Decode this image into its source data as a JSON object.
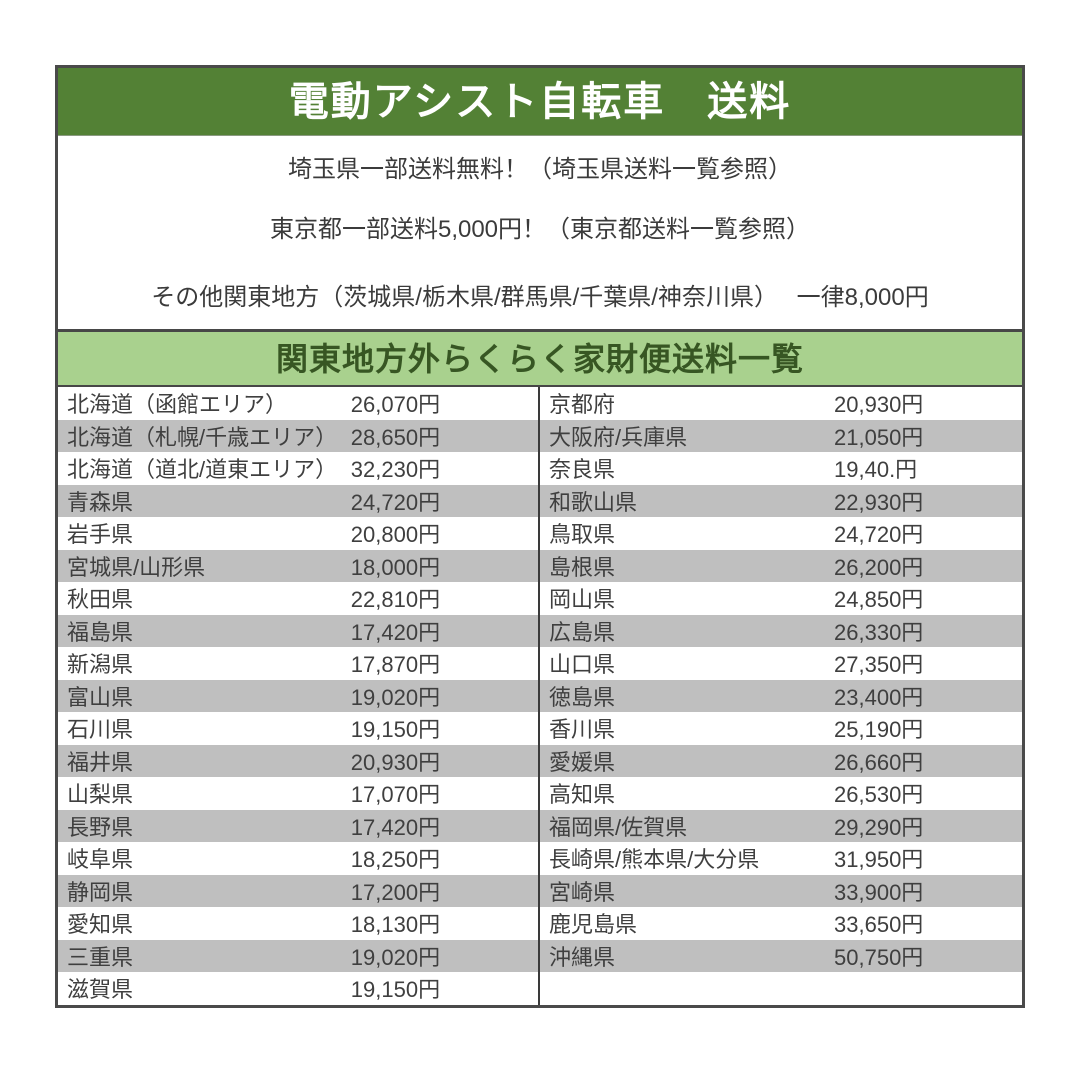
{
  "colors": {
    "header_bg": "#538135",
    "header_text": "#ffffff",
    "section_bg": "#a9d18e",
    "section_text": "#375623",
    "stripe_row": "#bfbfbf",
    "table_text": "#3f3f3f",
    "border": "#4a4a4a"
  },
  "header": {
    "title": "電動アシスト自転車　送料"
  },
  "notes": [
    "埼玉県一部送料無料！（埼玉県送料一覧参照）",
    "東京都一部送料5,000円！（東京都送料一覧参照）",
    "その他関東地方（茨城県/栃木県/群馬県/千葉県/神奈川県）　 一律8,000円"
  ],
  "section": {
    "title": "関東地方外らくらく家財便送料一覧"
  },
  "table": {
    "left_rows": [
      {
        "region": "北海道（函館エリア）",
        "price": "26,070円"
      },
      {
        "region": "北海道（札幌/千歳エリア）",
        "price": "28,650円"
      },
      {
        "region": "北海道（道北/道東エリア）",
        "price": "32,230円"
      },
      {
        "region": "青森県",
        "price": "24,720円"
      },
      {
        "region": "岩手県",
        "price": "20,800円"
      },
      {
        "region": "宮城県/山形県",
        "price": "18,000円"
      },
      {
        "region": "秋田県",
        "price": "22,810円"
      },
      {
        "region": "福島県",
        "price": "17,420円"
      },
      {
        "region": "新潟県",
        "price": "17,870円"
      },
      {
        "region": "富山県",
        "price": "19,020円"
      },
      {
        "region": "石川県",
        "price": "19,150円"
      },
      {
        "region": "福井県",
        "price": "20,930円"
      },
      {
        "region": "山梨県",
        "price": "17,070円"
      },
      {
        "region": "長野県",
        "price": "17,420円"
      },
      {
        "region": "岐阜県",
        "price": "18,250円"
      },
      {
        "region": "静岡県",
        "price": "17,200円"
      },
      {
        "region": "愛知県",
        "price": "18,130円"
      },
      {
        "region": "三重県",
        "price": "19,020円"
      },
      {
        "region": "滋賀県",
        "price": "19,150円"
      }
    ],
    "right_rows": [
      {
        "region": "京都府",
        "price": "20,930円"
      },
      {
        "region": "大阪府/兵庫県",
        "price": "21,050円"
      },
      {
        "region": "奈良県",
        "price": "19,40.円"
      },
      {
        "region": "和歌山県",
        "price": "22,930円"
      },
      {
        "region": "鳥取県",
        "price": "24,720円"
      },
      {
        "region": "島根県",
        "price": "26,200円"
      },
      {
        "region": "岡山県",
        "price": "24,850円"
      },
      {
        "region": "広島県",
        "price": "26,330円"
      },
      {
        "region": "山口県",
        "price": "27,350円"
      },
      {
        "region": "徳島県",
        "price": "23,400円"
      },
      {
        "region": "香川県",
        "price": "25,190円"
      },
      {
        "region": "愛媛県",
        "price": "26,660円"
      },
      {
        "region": "高知県",
        "price": "26,530円"
      },
      {
        "region": "福岡県/佐賀県",
        "price": "29,290円"
      },
      {
        "region": "長崎県/熊本県/大分県",
        "price": "31,950円"
      },
      {
        "region": "宮崎県",
        "price": "33,900円"
      },
      {
        "region": "鹿児島県",
        "price": "33,650円"
      },
      {
        "region": "沖縄県",
        "price": "50,750円"
      },
      {
        "region": "",
        "price": ""
      }
    ]
  }
}
